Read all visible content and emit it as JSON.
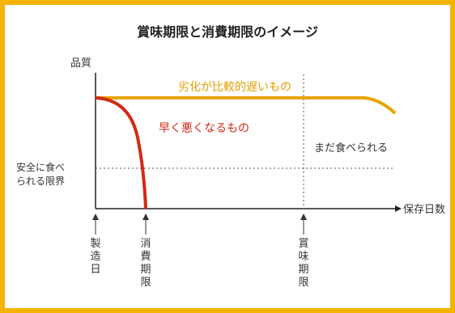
{
  "title": "賞味期限と消費期限のイメージ",
  "y_axis_label": "品質",
  "x_axis_label": "保存日数",
  "threshold_label_line1": "安全に食べ",
  "threshold_label_line2": "られる限界",
  "slow_curve_label": "劣化が比較的遅いもの",
  "fast_curve_label": "早く悪くなるもの",
  "still_edible_label": "まだ食べられる",
  "markers": [
    {
      "id": "manufacture",
      "label": "製造日"
    },
    {
      "id": "consume_by",
      "label": "消費期限"
    },
    {
      "id": "best_before",
      "label": "賞味期限"
    }
  ],
  "colors": {
    "frame": "#f3b300",
    "slow_curve": "#e8a400",
    "fast_curve": "#d22a12",
    "axis": "#222222",
    "dotted": "#555555"
  }
}
